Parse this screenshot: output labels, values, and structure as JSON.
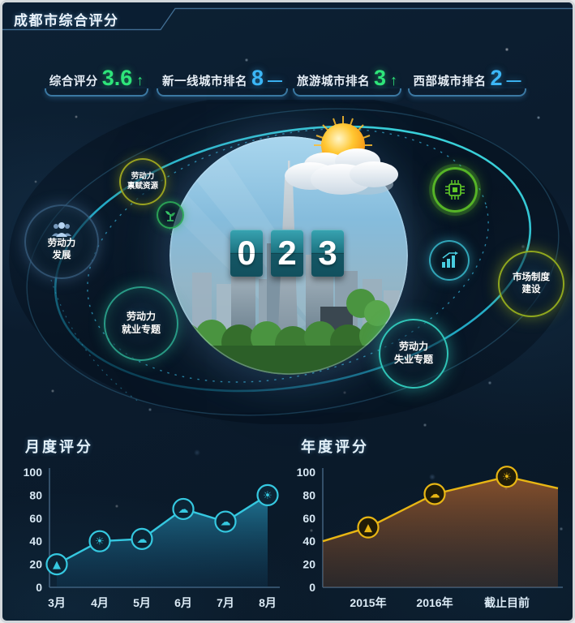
{
  "app": {
    "title": "成都市综合评分"
  },
  "stats": [
    {
      "label": "综合评分",
      "value": "3.6",
      "trend": "↑",
      "value_color": "#2ee57a"
    },
    {
      "label": "新一线城市排名",
      "value": "8",
      "trend": "—",
      "value_color": "#3cb7f7"
    },
    {
      "label": "旅游城市排名",
      "value": "3",
      "trend": "↑",
      "value_color": "#2ee57a"
    },
    {
      "label": "西部城市排名",
      "value": "2",
      "trend": "—",
      "value_color": "#3cb7f7"
    }
  ],
  "scene": {
    "counter_digits": [
      "0",
      "2",
      "3"
    ],
    "weather_icon": "sun-with-clouds",
    "bubbles": [
      {
        "id": "endowment",
        "line1": "劳动力",
        "line2": "禀赋资源",
        "ring_color": "#abb220"
      },
      {
        "id": "development",
        "line1": "劳动力",
        "line2": "发展",
        "ring_color": "#5f96c8",
        "icon": "people-icon"
      },
      {
        "id": "employment",
        "line1": "劳动力",
        "line2": "就业专题",
        "ring_color": "#2fb296"
      },
      {
        "id": "unemployment",
        "line1": "劳动力",
        "line2": "失业专题",
        "ring_color": "#35d8c8"
      },
      {
        "id": "market",
        "line1": "市场制度",
        "line2": "建设",
        "ring_color": "#a0b81e"
      }
    ],
    "mini_icons": [
      {
        "name": "sprout-icon",
        "color": "#2fb05a"
      },
      {
        "name": "chip-icon",
        "color": "#5fc728"
      },
      {
        "name": "bar-growth-icon",
        "color": "#3abed2"
      }
    ]
  },
  "chart_data": [
    {
      "type": "area",
      "title": "月度评分",
      "categories": [
        "3月",
        "4月",
        "5月",
        "6月",
        "7月",
        "8月"
      ],
      "values": [
        20,
        40,
        42,
        68,
        57,
        80
      ],
      "point_icons": [
        "mountain",
        "sun",
        "cloud",
        "cloud",
        "cloud",
        "sun"
      ],
      "ylim": [
        0,
        100
      ],
      "yticks": [
        0,
        20,
        40,
        60,
        80,
        100
      ],
      "line_color": "#35c8e0",
      "grid": false,
      "legend": "none"
    },
    {
      "type": "area",
      "title": "年度评分",
      "categories": [
        "2015年",
        "2016年",
        "截止目前"
      ],
      "values": [
        52,
        81,
        96
      ],
      "edge_start": 40,
      "edge_end": 86,
      "point_icons": [
        "mountain",
        "cloud",
        "sun"
      ],
      "ylim": [
        0,
        100
      ],
      "yticks": [
        0,
        20,
        40,
        60,
        80,
        100
      ],
      "line_color": "#e8b614",
      "grid": false,
      "legend": "none"
    }
  ]
}
